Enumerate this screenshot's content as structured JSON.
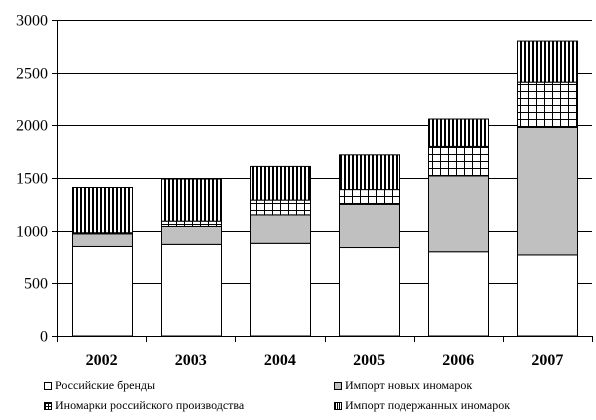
{
  "chart_data": {
    "type": "bar",
    "stacked": true,
    "categories": [
      "2002",
      "2003",
      "2004",
      "2005",
      "2006",
      "2007"
    ],
    "series": [
      {
        "name": "Российские бренды",
        "values": [
          850,
          870,
          880,
          840,
          800,
          770
        ],
        "fill": "#ffffff",
        "pattern": "none"
      },
      {
        "name": "Импорт новых иномарок",
        "values": [
          120,
          170,
          270,
          410,
          720,
          1210
        ],
        "fill": "#c0c0c0",
        "pattern": "none"
      },
      {
        "name": "Иномарки российского производства",
        "values": [
          10,
          50,
          140,
          140,
          280,
          430
        ],
        "fill": "#ffffff",
        "pattern": "grid"
      },
      {
        "name": "Импорт подержанных иномарок",
        "values": [
          430,
          400,
          320,
          330,
          260,
          390
        ],
        "fill": "#ffffff",
        "pattern": "vertical"
      }
    ],
    "yticks": [
      "0",
      "500",
      "1000",
      "1500",
      "2000",
      "2500",
      "3000"
    ],
    "ylim": [
      0,
      3000
    ],
    "grid": true,
    "legend_position": "bottom"
  }
}
